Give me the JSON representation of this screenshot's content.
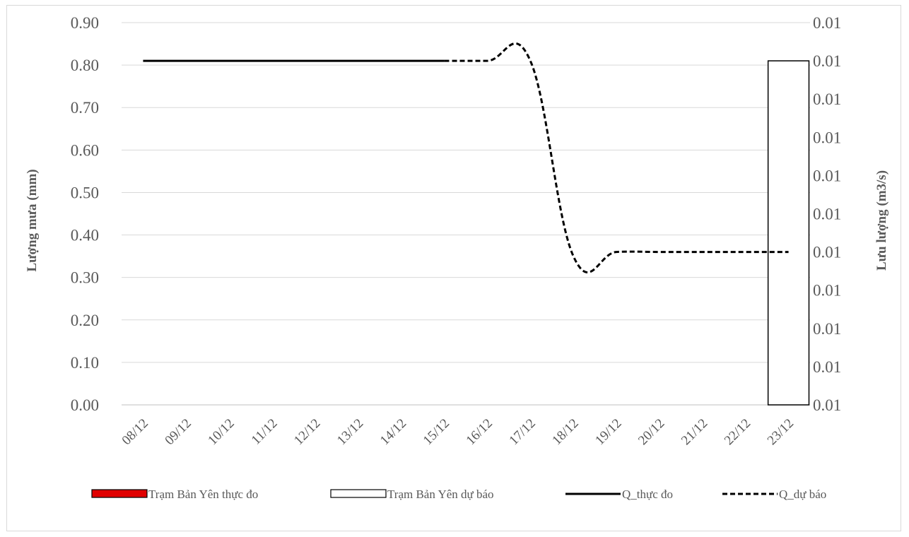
{
  "chart_data": {
    "type": "bar+line",
    "title": "",
    "categories": [
      "08/12",
      "09/12",
      "10/12",
      "11/12",
      "12/12",
      "13/12",
      "14/12",
      "15/12",
      "16/12",
      "17/12",
      "18/12",
      "19/12",
      "20/12",
      "21/12",
      "22/12",
      "23/12"
    ],
    "ylabel": "Lượng mưa (mm)",
    "y2label": "Lưu lượng (m3/s)",
    "ylim": [
      0,
      0.9
    ],
    "y_ticks": [
      "0.00",
      "0.10",
      "0.20",
      "0.30",
      "0.40",
      "0.50",
      "0.60",
      "0.70",
      "0.80",
      "0.90"
    ],
    "y2_ticks": [
      "0.01",
      "0.01",
      "0.01",
      "0.01",
      "0.01",
      "0.01",
      "0.01",
      "0.01",
      "0.01",
      "0.01",
      "0.01"
    ],
    "grid": true,
    "legend_position": "bottom",
    "series": [
      {
        "name": "Trạm Bản Yên thực đo",
        "kind": "bar",
        "color": "#e00000",
        "values": [
          0,
          0,
          0,
          0,
          0,
          0,
          0,
          0,
          0,
          0,
          0,
          0,
          0,
          0,
          0,
          0
        ]
      },
      {
        "name": "Trạm Bản Yên dự báo",
        "kind": "bar",
        "color": "#ffffff",
        "values": [
          null,
          null,
          null,
          null,
          null,
          null,
          null,
          null,
          null,
          null,
          null,
          null,
          null,
          null,
          null,
          0.81
        ]
      },
      {
        "name": "Q_thực đo",
        "kind": "line",
        "style": "solid",
        "color": "#000000",
        "values": [
          0.81,
          0.81,
          0.81,
          0.81,
          0.81,
          0.81,
          0.81,
          0.81,
          null,
          null,
          null,
          null,
          null,
          null,
          null,
          null
        ]
      },
      {
        "name": "Q_dự báo",
        "kind": "line",
        "style": "dashed",
        "color": "#000000",
        "values": [
          null,
          null,
          null,
          null,
          null,
          null,
          null,
          0.81,
          0.81,
          0.81,
          0.35,
          0.36,
          0.36,
          0.36,
          0.36,
          0.36
        ]
      }
    ]
  }
}
